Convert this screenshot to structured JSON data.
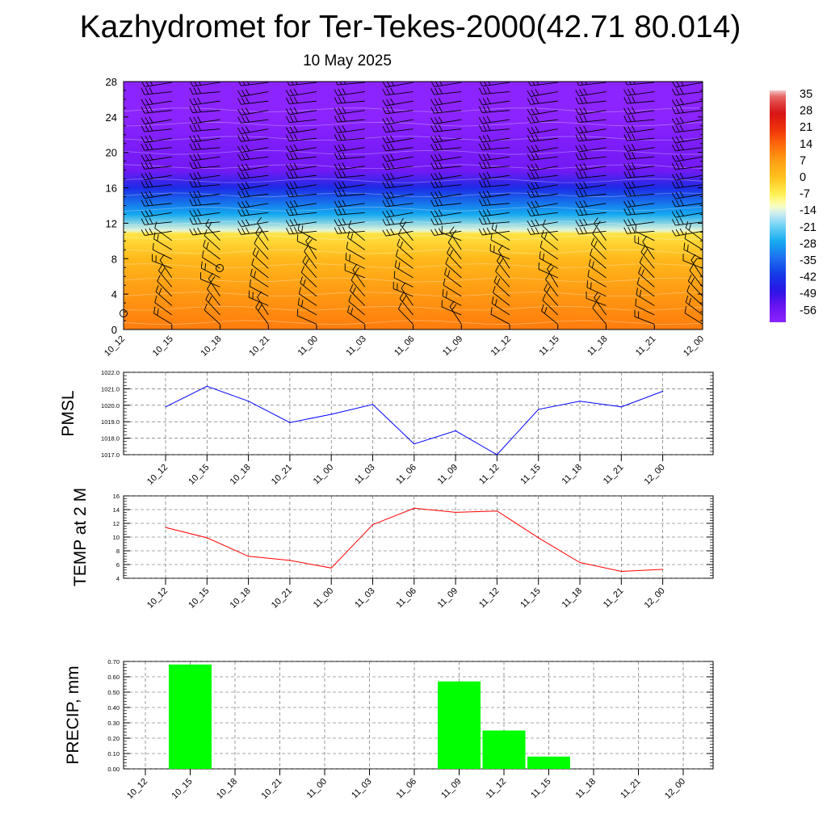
{
  "title": "Kazhydromet for Ter-Tekes-2000(42.71 80.014)",
  "subtitle": "10 May 2025",
  "chart_data": [
    {
      "type": "heatmap",
      "title": "",
      "xlabel": "",
      "ylabel": "",
      "x_ticks": [
        "10_12",
        "10_15",
        "10_18",
        "10_21",
        "11_00",
        "11_03",
        "11_06",
        "11_09",
        "11_12",
        "11_15",
        "11_18",
        "11_21",
        "12_00"
      ],
      "y_ticks": [
        "0",
        "4",
        "8",
        "12",
        "16",
        "20",
        "24",
        "28"
      ],
      "ylim": [
        0,
        28
      ],
      "colorbar": {
        "labels": [
          "35",
          "28",
          "21",
          "14",
          "7",
          "0",
          "-7",
          "-14",
          "-21",
          "-28",
          "-35",
          "-42",
          "-49",
          "-56"
        ],
        "range": [
          -63,
          38
        ]
      },
      "temperature_by_level": [
        {
          "level": 0,
          "value": 12
        },
        {
          "level": 4,
          "value": 8
        },
        {
          "level": 8,
          "value": 2
        },
        {
          "level": 10.8,
          "value": -5
        },
        {
          "level": 11.2,
          "value": -14
        },
        {
          "level": 13,
          "value": -28
        },
        {
          "level": 16,
          "value": -45
        },
        {
          "level": 18,
          "value": -58
        },
        {
          "level": 21,
          "value": -60
        },
        {
          "level": 24,
          "value": -63
        },
        {
          "level": 28,
          "value": -63
        }
      ],
      "wind_barbs": true
    },
    {
      "type": "line",
      "ylabel": "PMSL",
      "x": [
        "10_12",
        "10_15",
        "10_18",
        "10_21",
        "11_00",
        "11_03",
        "11_06",
        "11_09",
        "11_12",
        "11_15",
        "11_18",
        "11_21",
        "12_00"
      ],
      "y_ticks": [
        "1017.0",
        "1018.0",
        "1019.0",
        "1020.0",
        "1021.0",
        "1022.0"
      ],
      "ylim": [
        1017,
        1022
      ],
      "grid": true,
      "series": [
        {
          "color": "#0000ff",
          "values": [
            1019.9,
            1021.15,
            1020.25,
            1018.95,
            1019.45,
            1020.05,
            1017.65,
            1018.45,
            1017.0,
            1019.75,
            1020.25,
            1019.9,
            1020.85
          ]
        }
      ]
    },
    {
      "type": "line",
      "ylabel": "TEMP at 2 M",
      "x": [
        "10_12",
        "10_15",
        "10_18",
        "10_21",
        "11_00",
        "11_03",
        "11_06",
        "11_09",
        "11_12",
        "11_15",
        "11_18",
        "11_21",
        "12_00"
      ],
      "y_ticks": [
        "4",
        "6",
        "8",
        "10",
        "12",
        "14",
        "16"
      ],
      "ylim": [
        4,
        16
      ],
      "grid": true,
      "series": [
        {
          "color": "#ff0000",
          "values": [
            11.4,
            9.9,
            7.2,
            6.6,
            5.5,
            11.8,
            14.2,
            13.6,
            13.8,
            9.9,
            6.3,
            5.0,
            5.3
          ]
        }
      ]
    },
    {
      "type": "bar",
      "ylabel": "PRECIP, mm",
      "categories": [
        "10_12",
        "10_15",
        "10_18",
        "10_21",
        "11_00",
        "11_03",
        "11_06",
        "11_09",
        "11_12",
        "11_15",
        "11_18",
        "11_21",
        "12_00"
      ],
      "y_ticks": [
        "0.00",
        "0.10",
        "0.20",
        "0.30",
        "0.40",
        "0.50",
        "0.60",
        "0.70"
      ],
      "ylim": [
        0,
        0.7
      ],
      "grid": true,
      "bar_color": "#00ff00",
      "values": [
        0,
        0.68,
        0,
        0,
        0,
        0,
        0,
        0.57,
        0.25,
        0.08,
        0,
        0,
        0
      ]
    }
  ]
}
